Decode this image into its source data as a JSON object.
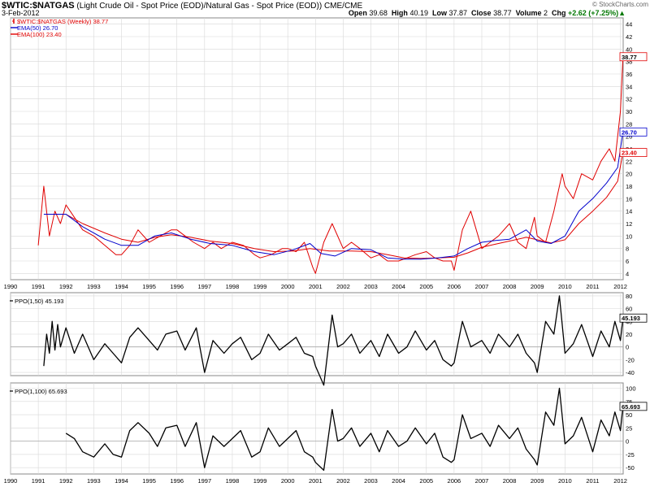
{
  "header": {
    "symbol": "$WTIC:$NATGAS",
    "description": "(Light Crude Oil - Spot Price (EOD)/Natural Gas - Spot Price (EOD)) CME/CME",
    "date": "3-Feb-2012",
    "copyright": "© StockCharts.com",
    "quote": {
      "open_label": "Open",
      "open": "39.68",
      "high_label": "High",
      "high": "40.19",
      "low_label": "Low",
      "low": "37.87",
      "close_label": "Close",
      "close": "38.77",
      "volume_label": "Volume",
      "volume": "2",
      "chg_label": "Chg",
      "chg": "+2.62 (+7.25%)",
      "chg_arrow": "▲"
    }
  },
  "colors": {
    "price": "#e00000",
    "ema50": "#0000cc",
    "ema100": "#e00000",
    "ppo": "#000000",
    "grid": "#d8d8d8",
    "frame": "#888888"
  },
  "chart_data": [
    {
      "type": "line",
      "panel": "price",
      "legend": [
        {
          "label": "$WTIC:$NATGAS (Weekly) 38.77",
          "color": "#e00000",
          "marker": "bar"
        },
        {
          "label": "EMA(50) 26.70",
          "color": "#0000cc",
          "marker": "line"
        },
        {
          "label": "EMA(100) 23.40",
          "color": "#e00000",
          "marker": "line"
        }
      ],
      "x_ticks": [
        "1990",
        "1991",
        "1992",
        "1993",
        "1994",
        "1995",
        "1996",
        "1997",
        "1998",
        "1999",
        "2000",
        "2001",
        "2002",
        "2003",
        "2004",
        "2005",
        "2006",
        "2007",
        "2008",
        "2009",
        "2010",
        "2011",
        "2012"
      ],
      "x_range": [
        1990,
        2012.1
      ],
      "y_ticks": [
        4,
        6,
        8,
        10,
        12,
        14,
        16,
        18,
        20,
        22,
        24,
        26,
        28,
        30,
        32,
        34,
        36,
        38,
        40,
        42,
        44
      ],
      "ylim": [
        3,
        45
      ],
      "last_values": {
        "price": "38.77",
        "ema50": "26.70",
        "ema100": "23.40"
      },
      "series": [
        {
          "name": "$WTIC:$NATGAS (Weekly)",
          "x": [
            1991.0,
            1991.2,
            1991.4,
            1991.6,
            1991.8,
            1992.0,
            1992.3,
            1992.6,
            1993.0,
            1993.4,
            1993.8,
            1994.0,
            1994.3,
            1994.6,
            1995.0,
            1995.4,
            1995.8,
            1996.0,
            1996.3,
            1996.6,
            1997.0,
            1997.3,
            1997.6,
            1998.0,
            1998.4,
            1998.8,
            1999.0,
            1999.4,
            1999.8,
            2000.0,
            2000.3,
            2000.6,
            2000.9,
            2001.0,
            2001.3,
            2001.6,
            2002.0,
            2002.3,
            2002.6,
            2003.0,
            2003.3,
            2003.6,
            2004.0,
            2004.3,
            2004.6,
            2005.0,
            2005.3,
            2005.6,
            2005.9,
            2006.0,
            2006.3,
            2006.6,
            2007.0,
            2007.3,
            2007.6,
            2008.0,
            2008.3,
            2008.6,
            2008.9,
            2009.0,
            2009.3,
            2009.6,
            2009.9,
            2010.0,
            2010.3,
            2010.6,
            2011.0,
            2011.3,
            2011.6,
            2011.8,
            2012.0,
            2012.09
          ],
          "values": [
            8.5,
            18,
            10,
            14,
            12,
            15,
            13,
            11,
            10,
            8.5,
            7,
            7,
            8.5,
            11,
            9,
            10,
            11,
            11,
            10,
            9,
            8,
            9,
            8,
            9,
            8.5,
            7,
            6.5,
            7,
            8,
            8,
            7.5,
            9,
            5,
            4,
            9,
            12,
            8,
            9,
            8,
            6.5,
            7,
            6,
            6,
            6.5,
            7,
            7.5,
            6.5,
            6,
            6,
            4.5,
            11,
            14,
            8,
            9,
            10,
            12,
            9,
            8,
            13,
            10,
            9,
            14,
            20,
            18,
            16,
            20,
            19,
            22,
            24,
            22,
            30,
            38.77
          ]
        },
        {
          "name": "EMA(50)",
          "x": [
            1991.2,
            1992.0,
            1992.6,
            1993.4,
            1994.0,
            1994.6,
            1995.2,
            1995.8,
            1996.5,
            1997.2,
            1998.0,
            1998.8,
            1999.5,
            2000.2,
            2000.8,
            2001.2,
            2001.7,
            2002.3,
            2003.0,
            2003.6,
            2004.2,
            2004.8,
            2005.4,
            2006.0,
            2006.5,
            2007.0,
            2007.5,
            2008.0,
            2008.6,
            2009.0,
            2009.5,
            2010.0,
            2010.5,
            2011.0,
            2011.5,
            2011.9,
            2012.09
          ],
          "values": [
            13.5,
            13.5,
            11.5,
            9.5,
            8.5,
            8.5,
            10,
            10.5,
            9.5,
            8.8,
            8.5,
            7.5,
            7,
            7.8,
            8.8,
            7.2,
            6.8,
            8,
            7.8,
            6.5,
            6.3,
            6.3,
            6.5,
            6.8,
            8,
            9,
            9.3,
            9.5,
            11,
            9.2,
            8.8,
            10,
            14,
            16,
            18.5,
            21,
            26.7
          ]
        },
        {
          "name": "EMA(100)",
          "x": [
            1992.0,
            1992.6,
            1993.4,
            1994.0,
            1994.6,
            1995.2,
            1995.8,
            1996.5,
            1997.2,
            1998.0,
            1998.8,
            1999.5,
            2000.2,
            2000.8,
            2001.5,
            2002.3,
            2003.0,
            2003.6,
            2004.2,
            2004.8,
            2005.4,
            2006.0,
            2006.5,
            2007.0,
            2007.5,
            2008.0,
            2008.6,
            2009.0,
            2009.5,
            2010.0,
            2010.5,
            2011.0,
            2011.5,
            2011.9,
            2012.09
          ],
          "values": [
            13.5,
            12,
            10.5,
            9.5,
            9,
            9.8,
            10.2,
            9.8,
            9.2,
            8.8,
            8,
            7.5,
            7.6,
            8,
            7.6,
            7.6,
            7.5,
            7,
            6.5,
            6.4,
            6.5,
            6.6,
            7.3,
            8.2,
            8.7,
            9.2,
            9.8,
            9.4,
            8.9,
            9.4,
            12,
            14,
            16.2,
            18.8,
            23.4
          ]
        }
      ]
    },
    {
      "type": "line",
      "panel": "ppo50",
      "legend": [
        {
          "label": "PPO(1,50) 45.193",
          "color": "#000000"
        }
      ],
      "y_ticks": [
        -40,
        -20,
        0,
        20,
        40,
        60,
        80
      ],
      "ylim": [
        -45,
        85
      ],
      "last_value": "45.193",
      "series": [
        {
          "name": "PPO(1,50)",
          "x": [
            1991.2,
            1991.3,
            1991.4,
            1991.5,
            1991.6,
            1991.7,
            1991.8,
            1992.0,
            1992.3,
            1992.6,
            1993.0,
            1993.4,
            1993.7,
            1994.0,
            1994.3,
            1994.6,
            1995.0,
            1995.3,
            1995.6,
            1996.0,
            1996.3,
            1996.7,
            1997.0,
            1997.3,
            1997.7,
            1998.0,
            1998.3,
            1998.7,
            1999.0,
            1999.3,
            1999.7,
            2000.0,
            2000.3,
            2000.6,
            2000.9,
            2001.0,
            2001.3,
            2001.6,
            2001.8,
            2002.0,
            2002.3,
            2002.6,
            2003.0,
            2003.3,
            2003.6,
            2004.0,
            2004.3,
            2004.6,
            2005.0,
            2005.3,
            2005.6,
            2005.9,
            2006.0,
            2006.3,
            2006.6,
            2007.0,
            2007.3,
            2007.6,
            2008.0,
            2008.3,
            2008.6,
            2008.9,
            2009.0,
            2009.3,
            2009.6,
            2009.8,
            2010.0,
            2010.3,
            2010.6,
            2011.0,
            2011.3,
            2011.6,
            2011.8,
            2012.0,
            2012.09
          ],
          "values": [
            -30,
            20,
            -10,
            40,
            -5,
            35,
            0,
            30,
            -10,
            20,
            -20,
            5,
            -10,
            -25,
            15,
            30,
            10,
            -5,
            20,
            25,
            -5,
            30,
            -40,
            10,
            -10,
            5,
            15,
            -20,
            -10,
            20,
            -5,
            5,
            15,
            -10,
            -15,
            -30,
            -60,
            50,
            0,
            5,
            20,
            -10,
            10,
            -15,
            20,
            -10,
            0,
            25,
            -5,
            10,
            -20,
            -30,
            -25,
            40,
            0,
            10,
            -10,
            20,
            0,
            20,
            -10,
            -25,
            -40,
            40,
            20,
            80,
            -10,
            5,
            35,
            -15,
            25,
            0,
            40,
            10,
            45.193
          ]
        }
      ]
    },
    {
      "type": "line",
      "panel": "ppo100",
      "legend": [
        {
          "label": "PPO(1,100) 65.693",
          "color": "#000000"
        }
      ],
      "y_ticks": [
        -50,
        -25,
        0,
        25,
        50,
        75,
        100
      ],
      "ylim": [
        -62,
        110
      ],
      "last_value": "65.693",
      "series": [
        {
          "name": "PPO(1,100)",
          "x": [
            1992.0,
            1992.3,
            1992.6,
            1993.0,
            1993.4,
            1993.7,
            1994.0,
            1994.3,
            1994.6,
            1995.0,
            1995.3,
            1995.6,
            1996.0,
            1996.3,
            1996.7,
            1997.0,
            1997.3,
            1997.7,
            1998.0,
            1998.3,
            1998.7,
            1999.0,
            1999.3,
            1999.7,
            2000.0,
            2000.3,
            2000.6,
            2000.9,
            2001.0,
            2001.3,
            2001.6,
            2001.8,
            2002.0,
            2002.3,
            2002.6,
            2003.0,
            2003.3,
            2003.6,
            2004.0,
            2004.3,
            2004.6,
            2005.0,
            2005.3,
            2005.6,
            2005.9,
            2006.0,
            2006.3,
            2006.6,
            2007.0,
            2007.3,
            2007.6,
            2008.0,
            2008.3,
            2008.6,
            2008.9,
            2009.0,
            2009.3,
            2009.6,
            2009.8,
            2010.0,
            2010.3,
            2010.6,
            2011.0,
            2011.3,
            2011.6,
            2011.8,
            2012.0,
            2012.09
          ],
          "values": [
            15,
            5,
            -20,
            -30,
            -5,
            -25,
            -30,
            20,
            35,
            15,
            -10,
            25,
            30,
            -10,
            35,
            -50,
            10,
            -10,
            5,
            20,
            -30,
            -20,
            25,
            -10,
            5,
            20,
            -20,
            -30,
            -40,
            -55,
            60,
            0,
            5,
            25,
            -10,
            15,
            -20,
            20,
            -10,
            0,
            25,
            -5,
            15,
            -30,
            -40,
            -35,
            50,
            5,
            15,
            -10,
            30,
            5,
            25,
            -15,
            -35,
            -45,
            55,
            30,
            100,
            -5,
            10,
            45,
            -20,
            40,
            10,
            55,
            20,
            65.693
          ]
        }
      ]
    }
  ]
}
